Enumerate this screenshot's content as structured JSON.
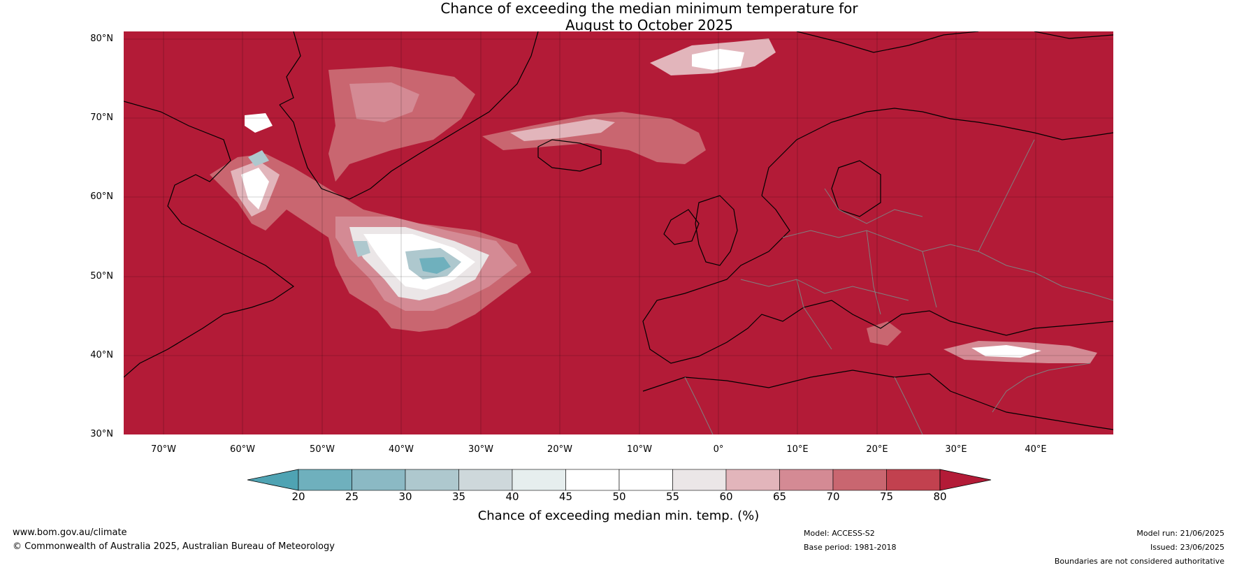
{
  "title": {
    "line1": "Chance of exceeding the median minimum temperature for",
    "line2": "August to October 2025"
  },
  "map": {
    "background_color": "#b31b37",
    "lat_labels": [
      "80°N",
      "70°N",
      "60°N",
      "50°N",
      "40°N",
      "30°N"
    ],
    "lon_labels": [
      "70°W",
      "60°W",
      "50°W",
      "40°W",
      "30°W",
      "20°W",
      "10°W",
      "0°",
      "10°E",
      "20°E",
      "30°E",
      "40°E"
    ]
  },
  "colorbar": {
    "labels": [
      "20",
      "25",
      "30",
      "35",
      "40",
      "45",
      "50",
      "55",
      "60",
      "65",
      "70",
      "75",
      "80"
    ],
    "colors": [
      "#4fa3b3",
      "#6fb0bd",
      "#8bb9c4",
      "#aec8ce",
      "#ced8db",
      "#e6eeee",
      "#ffffff",
      "#ffffff",
      "#ebe6e7",
      "#e2b5bb",
      "#d48a94",
      "#c96670",
      "#c2414f",
      "#b31b37"
    ],
    "title": "Chance of exceeding median min. temp. (%)"
  },
  "footer": {
    "website": "www.bom.gov.au/climate",
    "copyright": "© Commonwealth of Australia 2025, Australian Bureau of Meteorology",
    "model": "Model: ACCESS-S2",
    "base_period": "Base period: 1981-2018",
    "model_run": "Model run: 21/06/2025",
    "issued": "Issued: 23/06/2025",
    "disclaimer": "Boundaries are not considered authoritative"
  }
}
